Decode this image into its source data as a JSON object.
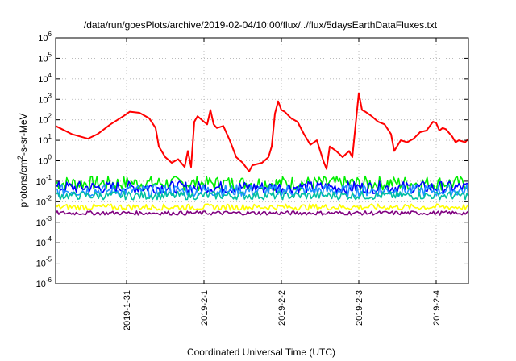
{
  "chart_data": {
    "type": "line",
    "title": "/data/run/goesPlots/archive/2019-02-04/10:00/flux/../flux/5daysEarthDataFluxes.txt",
    "xlabel": "Coordinated Universal Time (UTC)",
    "ylabel_main": "protons/cm",
    "ylabel_sup": "2",
    "ylabel_rest": "-s-sr-MeV",
    "y_scale": "log",
    "ylim": [
      1e-06,
      1000000.0
    ],
    "y_ticks": [
      {
        "base": "10",
        "exp": "-6",
        "value": -6
      },
      {
        "base": "10",
        "exp": "-5",
        "value": -5
      },
      {
        "base": "10",
        "exp": "-4",
        "value": -4
      },
      {
        "base": "10",
        "exp": "-3",
        "value": -3
      },
      {
        "base": "10",
        "exp": "-2",
        "value": -2
      },
      {
        "base": "10",
        "exp": "-1",
        "value": -1
      },
      {
        "base": "10",
        "exp": "0",
        "value": 0
      },
      {
        "base": "10",
        "exp": "1",
        "value": 1
      },
      {
        "base": "10",
        "exp": "2",
        "value": 2
      },
      {
        "base": "10",
        "exp": "3",
        "value": 3
      },
      {
        "base": "10",
        "exp": "4",
        "value": 4
      },
      {
        "base": "10",
        "exp": "5",
        "value": 5
      },
      {
        "base": "10",
        "exp": "6",
        "value": 6
      }
    ],
    "xlim": [
      "2019-01-30 02:00",
      "2019-02-04 10:00"
    ],
    "x_ticks": [
      {
        "label": "2019-1-31",
        "time": "2019-01-31 00:00"
      },
      {
        "label": "2019-2-1",
        "time": "2019-02-01 00:00"
      },
      {
        "label": "2019-2-2",
        "time": "2019-02-02 00:00"
      },
      {
        "label": "2019-2-3",
        "time": "2019-02-03 00:00"
      },
      {
        "label": "2019-2-4",
        "time": "2019-02-04 00:00"
      }
    ],
    "grid": true,
    "series": [
      {
        "color": "#ff0000",
        "points": [
          [
            "2019-01-30 02:00",
            50
          ],
          [
            "2019-01-30 04:00",
            35
          ],
          [
            "2019-01-30 07:00",
            20
          ],
          [
            "2019-01-30 12:00",
            12
          ],
          [
            "2019-01-30 15:00",
            20
          ],
          [
            "2019-01-30 19:00",
            60
          ],
          [
            "2019-01-30 23:00",
            150
          ],
          [
            "2019-01-31 01:00",
            250
          ],
          [
            "2019-01-31 04:00",
            220
          ],
          [
            "2019-01-31 07:00",
            120
          ],
          [
            "2019-01-31 09:00",
            40
          ],
          [
            "2019-01-31 10:00",
            5
          ],
          [
            "2019-01-31 12:00",
            1.5
          ],
          [
            "2019-01-31 14:00",
            0.8
          ],
          [
            "2019-01-31 16:00",
            1.2
          ],
          [
            "2019-01-31 18:00",
            0.5
          ],
          [
            "2019-01-31 19:00",
            3
          ],
          [
            "2019-01-31 20:00",
            0.5
          ],
          [
            "2019-01-31 21:00",
            80
          ],
          [
            "2019-01-31 22:00",
            150
          ],
          [
            "2019-02-01 00:00",
            80
          ],
          [
            "2019-02-01 01:00",
            60
          ],
          [
            "2019-02-01 02:00",
            300
          ],
          [
            "2019-02-01 03:00",
            60
          ],
          [
            "2019-02-01 04:00",
            40
          ],
          [
            "2019-02-01 06:00",
            50
          ],
          [
            "2019-02-01 08:00",
            10
          ],
          [
            "2019-02-01 10:00",
            1.5
          ],
          [
            "2019-02-01 12:00",
            0.8
          ],
          [
            "2019-02-01 14:00",
            0.3
          ],
          [
            "2019-02-01 15:00",
            0.6
          ],
          [
            "2019-02-01 18:00",
            0.8
          ],
          [
            "2019-02-01 20:00",
            1.5
          ],
          [
            "2019-02-01 21:00",
            5
          ],
          [
            "2019-02-01 22:00",
            200
          ],
          [
            "2019-02-01 23:00",
            800
          ],
          [
            "2019-02-02 00:00",
            300
          ],
          [
            "2019-02-02 01:00",
            250
          ],
          [
            "2019-02-02 03:00",
            120
          ],
          [
            "2019-02-02 05:00",
            80
          ],
          [
            "2019-02-02 07:00",
            20
          ],
          [
            "2019-02-02 09:00",
            6
          ],
          [
            "2019-02-02 11:00",
            10
          ],
          [
            "2019-02-02 13:00",
            1
          ],
          [
            "2019-02-02 14:00",
            0.4
          ],
          [
            "2019-02-02 15:00",
            5
          ],
          [
            "2019-02-02 17:00",
            3
          ],
          [
            "2019-02-02 19:00",
            1.5
          ],
          [
            "2019-02-02 21:00",
            3
          ],
          [
            "2019-02-02 22:00",
            1.5
          ],
          [
            "2019-02-03 00:00",
            2000
          ],
          [
            "2019-02-03 01:00",
            300
          ],
          [
            "2019-02-03 02:00",
            250
          ],
          [
            "2019-02-03 04:00",
            150
          ],
          [
            "2019-02-03 06:00",
            80
          ],
          [
            "2019-02-03 08:00",
            60
          ],
          [
            "2019-02-03 10:00",
            20
          ],
          [
            "2019-02-03 11:00",
            3
          ],
          [
            "2019-02-03 13:00",
            10
          ],
          [
            "2019-02-03 15:00",
            8
          ],
          [
            "2019-02-03 17:00",
            12
          ],
          [
            "2019-02-03 19:00",
            25
          ],
          [
            "2019-02-03 21:00",
            30
          ],
          [
            "2019-02-03 23:00",
            80
          ],
          [
            "2019-02-04 00:00",
            70
          ],
          [
            "2019-02-04 01:00",
            30
          ],
          [
            "2019-02-04 02:00",
            40
          ],
          [
            "2019-02-04 03:00",
            35
          ],
          [
            "2019-02-04 05:00",
            15
          ],
          [
            "2019-02-04 06:00",
            8
          ],
          [
            "2019-02-04 07:00",
            10
          ],
          [
            "2019-02-04 09:00",
            8
          ],
          [
            "2019-02-04 10:00",
            12
          ]
        ]
      },
      {
        "color": "#00ee00",
        "base": 0.08,
        "spread": 0.35
      },
      {
        "color": "#0000ff",
        "base": 0.05,
        "spread": 0.3
      },
      {
        "color": "#1e90ff",
        "base": 0.035,
        "spread": 0.3
      },
      {
        "color": "#00c0a0",
        "base": 0.02,
        "spread": 0.2
      },
      {
        "color": "#ffff00",
        "base": 0.0055,
        "spread": 0.15
      },
      {
        "color": "#800080",
        "base": 0.0028,
        "spread": 0.1
      }
    ]
  }
}
